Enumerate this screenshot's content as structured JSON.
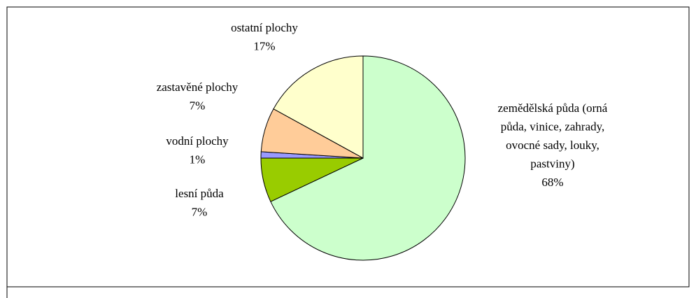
{
  "chart_data": {
    "type": "pie",
    "categories": [
      "zemědělská půda (orná půda, vinice, zahrady, ovocné sady, louky, pastviny)",
      "lesní půda",
      "vodní plochy",
      "zastavěné plochy",
      "ostatní plochy"
    ],
    "values": [
      68,
      7,
      1,
      7,
      17
    ],
    "value_labels": [
      "68%",
      "7%",
      "1%",
      "7%",
      "17%"
    ],
    "colors": [
      "#ccffcc",
      "#99cc00",
      "#9999ff",
      "#ffcc99",
      "#ffffcc"
    ]
  }
}
